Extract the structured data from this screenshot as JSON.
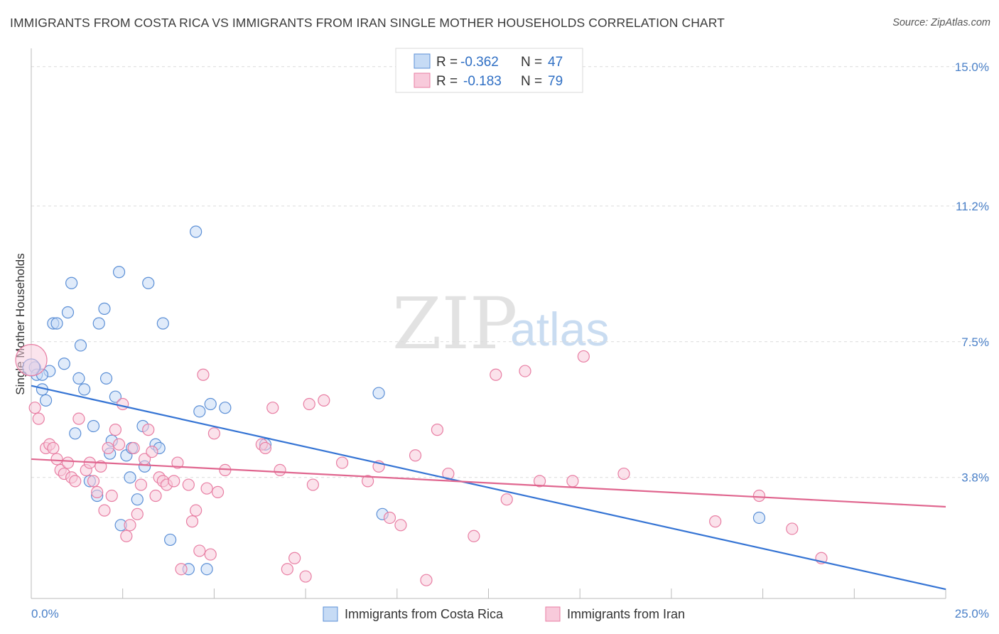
{
  "title": "IMMIGRANTS FROM COSTA RICA VS IMMIGRANTS FROM IRAN SINGLE MOTHER HOUSEHOLDS CORRELATION CHART",
  "source": "Source: ZipAtlas.com",
  "watermark": {
    "zip": "ZIP",
    "atlas": "atlas"
  },
  "colors": {
    "blue": "#5b8fd6",
    "blue_fill": "#c6dbf5",
    "blue_line": "#3574d4",
    "pink": "#e87ea3",
    "pink_fill": "#f8cadb",
    "pink_line": "#e0668f",
    "tick_label": "#4a80c8"
  },
  "legend": {
    "r_label": "R =",
    "n_label": "N =",
    "series1": {
      "r": "-0.362",
      "n": "47"
    },
    "series2": {
      "r": "-0.183",
      "n": "79"
    }
  },
  "bottom_legend": {
    "series1": "Immigrants from Costa Rica",
    "series2": "Immigrants from Iran"
  },
  "chart_data": {
    "type": "scatter",
    "xlabel": "",
    "ylabel": "Single Mother Households",
    "xlim": [
      0,
      25
    ],
    "ylim": [
      0.5,
      15.5
    ],
    "x_tick_labels": [
      {
        "value": 0,
        "label": "0.0%"
      },
      {
        "value": 25,
        "label": "25.0%"
      }
    ],
    "y_ticks": [
      {
        "value": 3.8,
        "label": "3.8%"
      },
      {
        "value": 7.5,
        "label": "7.5%"
      },
      {
        "value": 11.2,
        "label": "11.2%"
      },
      {
        "value": 15.0,
        "label": "15.0%"
      }
    ],
    "series": [
      {
        "name": "Immigrants from Costa Rica",
        "color": "#5b8fd6",
        "trend": {
          "x": [
            0,
            25
          ],
          "y": [
            6.3,
            0.75
          ]
        },
        "points": [
          [
            0.1,
            6.8
          ],
          [
            0.15,
            6.6
          ],
          [
            0.3,
            6.2
          ],
          [
            0.4,
            5.9
          ],
          [
            0.5,
            6.7
          ],
          [
            0.6,
            8.0
          ],
          [
            0.7,
            8.0
          ],
          [
            0.9,
            6.9
          ],
          [
            1.0,
            8.3
          ],
          [
            1.1,
            9.1
          ],
          [
            1.3,
            6.5
          ],
          [
            1.35,
            7.4
          ],
          [
            1.45,
            6.2
          ],
          [
            1.7,
            5.2
          ],
          [
            1.8,
            3.3
          ],
          [
            1.85,
            8.0
          ],
          [
            2.0,
            8.4
          ],
          [
            2.05,
            6.5
          ],
          [
            2.2,
            4.8
          ],
          [
            2.3,
            6.0
          ],
          [
            2.4,
            9.4
          ],
          [
            2.45,
            2.5
          ],
          [
            2.6,
            4.4
          ],
          [
            2.7,
            3.8
          ],
          [
            2.75,
            4.6
          ],
          [
            2.9,
            3.2
          ],
          [
            3.05,
            5.2
          ],
          [
            3.1,
            4.1
          ],
          [
            3.2,
            9.1
          ],
          [
            3.4,
            4.7
          ],
          [
            3.5,
            4.6
          ],
          [
            3.6,
            8.0
          ],
          [
            3.8,
            2.1
          ],
          [
            4.3,
            1.3
          ],
          [
            4.5,
            10.5
          ],
          [
            4.6,
            5.6
          ],
          [
            4.8,
            1.3
          ],
          [
            4.9,
            5.8
          ],
          [
            5.3,
            5.7
          ],
          [
            6.4,
            4.7
          ],
          [
            9.5,
            6.1
          ],
          [
            9.6,
            2.8
          ],
          [
            19.9,
            2.7
          ],
          [
            0.3,
            6.6
          ],
          [
            1.2,
            5.0
          ],
          [
            2.15,
            4.45
          ],
          [
            1.6,
            3.7
          ]
        ]
      },
      {
        "name": "Immigrants from Iran",
        "color": "#e87ea3",
        "trend": {
          "x": [
            0,
            25
          ],
          "y": [
            4.3,
            3.0
          ]
        },
        "points": [
          [
            0.1,
            5.7
          ],
          [
            0.2,
            5.4
          ],
          [
            0.4,
            4.6
          ],
          [
            0.5,
            4.7
          ],
          [
            0.6,
            4.6
          ],
          [
            0.7,
            4.3
          ],
          [
            0.8,
            4.0
          ],
          [
            0.9,
            3.9
          ],
          [
            1.0,
            4.2
          ],
          [
            1.1,
            3.8
          ],
          [
            1.2,
            3.7
          ],
          [
            1.3,
            5.4
          ],
          [
            1.5,
            4.0
          ],
          [
            1.6,
            4.2
          ],
          [
            1.7,
            3.7
          ],
          [
            1.8,
            3.4
          ],
          [
            1.9,
            4.1
          ],
          [
            2.0,
            2.9
          ],
          [
            2.1,
            4.6
          ],
          [
            2.2,
            3.3
          ],
          [
            2.3,
            5.1
          ],
          [
            2.4,
            4.7
          ],
          [
            2.5,
            5.8
          ],
          [
            2.6,
            2.2
          ],
          [
            2.7,
            2.5
          ],
          [
            2.8,
            4.6
          ],
          [
            2.9,
            2.8
          ],
          [
            3.0,
            3.6
          ],
          [
            3.1,
            4.3
          ],
          [
            3.2,
            5.1
          ],
          [
            3.3,
            4.5
          ],
          [
            3.4,
            3.3
          ],
          [
            3.5,
            3.8
          ],
          [
            3.6,
            3.7
          ],
          [
            3.7,
            3.6
          ],
          [
            3.9,
            3.7
          ],
          [
            4.0,
            4.2
          ],
          [
            4.1,
            1.3
          ],
          [
            4.3,
            3.6
          ],
          [
            4.4,
            2.6
          ],
          [
            4.5,
            2.9
          ],
          [
            4.6,
            1.8
          ],
          [
            4.7,
            6.6
          ],
          [
            4.8,
            3.5
          ],
          [
            4.9,
            1.7
          ],
          [
            5.0,
            5.0
          ],
          [
            5.1,
            3.4
          ],
          [
            5.3,
            4.0
          ],
          [
            6.3,
            4.7
          ],
          [
            6.6,
            5.7
          ],
          [
            6.8,
            4.0
          ],
          [
            7.0,
            1.3
          ],
          [
            7.2,
            1.6
          ],
          [
            7.5,
            1.1
          ],
          [
            7.6,
            5.8
          ],
          [
            7.7,
            3.6
          ],
          [
            8.0,
            5.9
          ],
          [
            8.5,
            4.2
          ],
          [
            9.2,
            3.7
          ],
          [
            9.5,
            4.1
          ],
          [
            9.8,
            2.7
          ],
          [
            10.1,
            2.5
          ],
          [
            10.5,
            4.4
          ],
          [
            10.8,
            1.0
          ],
          [
            11.1,
            5.1
          ],
          [
            11.4,
            3.9
          ],
          [
            12.1,
            2.2
          ],
          [
            12.7,
            6.6
          ],
          [
            13.0,
            3.2
          ],
          [
            13.5,
            6.7
          ],
          [
            13.9,
            3.7
          ],
          [
            14.8,
            3.7
          ],
          [
            15.1,
            7.1
          ],
          [
            16.2,
            3.9
          ],
          [
            18.7,
            2.6
          ],
          [
            19.9,
            3.3
          ],
          [
            20.8,
            2.4
          ],
          [
            21.6,
            1.6
          ],
          [
            6.4,
            4.6
          ]
        ]
      }
    ]
  }
}
